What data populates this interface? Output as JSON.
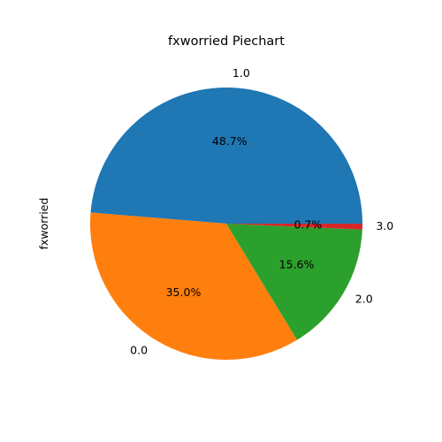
{
  "chart_data": {
    "type": "pie",
    "title": "fxworried Piechart",
    "ylabel": "fxworried",
    "categories": [
      "1.0",
      "0.0",
      "2.0",
      "3.0"
    ],
    "values": [
      48.7,
      35.0,
      15.6,
      0.7
    ],
    "percent_labels": [
      "48.7%",
      "35.0%",
      "15.6%",
      "0.7%"
    ],
    "colors": [
      "#1f77b4",
      "#ff7f0e",
      "#2ca02c",
      "#d62728"
    ],
    "start_angle_deg": 0,
    "direction": "counterclockwise",
    "legend": "none"
  }
}
